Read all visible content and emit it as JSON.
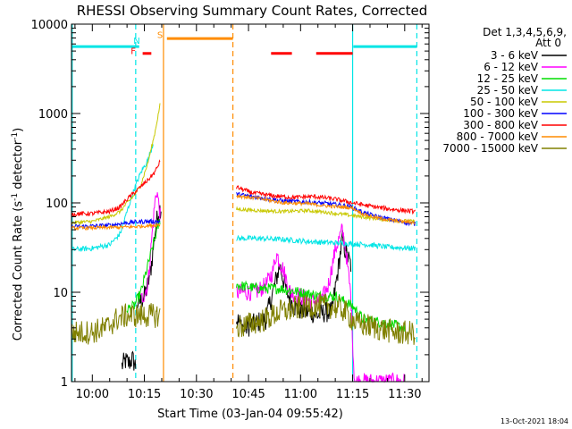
{
  "chart_data": {
    "type": "line",
    "title": "RHESSI Observing Summary Count Rates, Corrected",
    "xlabel": "Start Time (03-Jan-04 09:55:42)",
    "ylabel_main": "Corrected Count Rate (s",
    "ylabel_sup1": "-1",
    "ylabel_mid": " detector",
    "ylabel_sup2": "-1",
    "ylabel_end": ")",
    "y_scale": "log",
    "ylim": [
      1,
      10000
    ],
    "xlim_minutes": [
      -6,
      97
    ],
    "x_ticks": [
      {
        "m": 0,
        "label": "10:00"
      },
      {
        "m": 15,
        "label": "10:15"
      },
      {
        "m": 30,
        "label": "10:30"
      },
      {
        "m": 45,
        "label": "10:45"
      },
      {
        "m": 60,
        "label": "11:00"
      },
      {
        "m": 75,
        "label": "11:15"
      },
      {
        "m": 90,
        "label": "11:30"
      }
    ],
    "y_ticks": [
      {
        "v": 1,
        "label": "1"
      },
      {
        "v": 10,
        "label": "10"
      },
      {
        "v": 100,
        "label": "100"
      },
      {
        "v": 1000,
        "label": "1000"
      },
      {
        "v": 10000,
        "label": "10000"
      }
    ],
    "legend_header": [
      "Det 1,3,4,5,6,9,",
      "Att 0"
    ],
    "legend_placement": "right",
    "timestamp": "13-Oct-2021 18:04",
    "annotations": [
      {
        "text": "N",
        "m": 12.8,
        "v": 6000,
        "color": "#00e5e5"
      },
      {
        "text": "S",
        "m": 19.5,
        "v": 7000,
        "color": "#ff8c00"
      },
      {
        "text": "F",
        "m": 11.8,
        "v": 4600,
        "color": "#ff0000"
      }
    ],
    "state_bars": [
      {
        "color": "#00e5e5",
        "m0": -6,
        "m1": 13.5,
        "v": 5600
      },
      {
        "color": "#00e5e5",
        "m0": 75.2,
        "m1": 93.5,
        "v": 5600
      },
      {
        "color": "#ff8c00",
        "m0": 21.5,
        "m1": 40.5,
        "v": 6900
      },
      {
        "color": "#ff0000",
        "m0": 14.5,
        "m1": 17,
        "v": 4700
      },
      {
        "color": "#ff0000",
        "m0": 51.5,
        "m1": 57.5,
        "v": 4700
      },
      {
        "color": "#ff0000",
        "m0": 64.5,
        "m1": 75,
        "v": 4700
      }
    ],
    "vlines": [
      {
        "m": 12.5,
        "color": "#00e5e5",
        "dash": true
      },
      {
        "m": 20.5,
        "color": "#ff8c00",
        "dash": false
      },
      {
        "m": 40.5,
        "color": "#ff8c00",
        "dash": true
      },
      {
        "m": 75,
        "color": "#00e5e5",
        "dash": false
      },
      {
        "m": 93.5,
        "color": "#00e5e5",
        "dash": true
      },
      {
        "m": -5.8,
        "color": "#00e5e5",
        "dash": false
      }
    ],
    "series": [
      {
        "name": "3 - 6 keV",
        "color": "#000000",
        "noise": 0.12,
        "segments": [
          [
            [
              8.5,
              1.5
            ],
            [
              9.5,
              1.7
            ],
            [
              10.5,
              1.6
            ],
            [
              11.5,
              1.8
            ],
            [
              12.5,
              1.5
            ]
          ],
          [
            [
              13,
              7.5
            ],
            [
              14,
              8
            ],
            [
              15,
              9
            ],
            [
              16,
              12
            ],
            [
              17,
              20
            ],
            [
              18,
              45
            ],
            [
              19,
              80
            ],
            [
              19.8,
              90
            ]
          ],
          [
            [
              41.5,
              5
            ],
            [
              44,
              4
            ],
            [
              47,
              4.5
            ],
            [
              50,
              5
            ],
            [
              52,
              10
            ],
            [
              54,
              20
            ],
            [
              56,
              10
            ],
            [
              58,
              7
            ],
            [
              61,
              6
            ],
            [
              63,
              6
            ],
            [
              65,
              5.5
            ],
            [
              67,
              6
            ],
            [
              69,
              6
            ],
            [
              71,
              20
            ],
            [
              72,
              40
            ],
            [
              73,
              28
            ],
            [
              74.5,
              20
            ]
          ]
        ]
      },
      {
        "name": "6 - 12 keV",
        "color": "#ff00ff",
        "noise": 0.1,
        "segments": [
          [
            [
              14,
              8
            ],
            [
              16,
              12
            ],
            [
              18,
              100
            ],
            [
              18.6,
              140
            ],
            [
              19.6,
              70
            ]
          ],
          [
            [
              41.5,
              10
            ],
            [
              47,
              10
            ],
            [
              50,
              12
            ],
            [
              52,
              17
            ],
            [
              53,
              27
            ],
            [
              55,
              18
            ],
            [
              57,
              10
            ],
            [
              60,
              9
            ],
            [
              63,
              8
            ],
            [
              66,
              8
            ],
            [
              68,
              12
            ],
            [
              70,
              30
            ],
            [
              72,
              50
            ],
            [
              73,
              30
            ],
            [
              74.5,
              9
            ],
            [
              75.5,
              1
            ],
            [
              76.2,
              1
            ],
            [
              81,
              1
            ],
            [
              90,
              1
            ]
          ]
        ]
      },
      {
        "name": "12 - 25 keV",
        "color": "#00dd00",
        "noise": 0.06,
        "segments": [
          [
            [
              10,
              6.5
            ],
            [
              12,
              7
            ],
            [
              14,
              10
            ],
            [
              16,
              20
            ],
            [
              18,
              40
            ],
            [
              19.5,
              65
            ]
          ],
          [
            [
              41.5,
              12
            ],
            [
              48,
              11
            ],
            [
              54,
              11
            ],
            [
              60,
              10
            ],
            [
              66,
              9
            ],
            [
              70,
              9
            ],
            [
              75,
              7
            ],
            [
              78,
              5
            ],
            [
              85,
              4.5
            ],
            [
              90,
              4
            ]
          ]
        ]
      },
      {
        "name": "25 - 50 keV",
        "color": "#00e5e5",
        "noise": 0.03,
        "segments": [
          [
            [
              -6,
              30
            ],
            [
              0,
              31
            ],
            [
              5,
              34
            ],
            [
              8,
              45
            ],
            [
              10,
              80
            ],
            [
              12,
              140
            ],
            [
              14,
              220
            ],
            [
              16,
              300
            ],
            [
              17.5,
              460
            ]
          ],
          [
            [
              41.5,
              40
            ],
            [
              48,
              40
            ],
            [
              55,
              39
            ],
            [
              62,
              37
            ],
            [
              68,
              36
            ],
            [
              74,
              35
            ],
            [
              80,
              34
            ],
            [
              85,
              32
            ],
            [
              93,
              31
            ]
          ]
        ]
      },
      {
        "name": "50 - 100 keV",
        "color": "#c8c800",
        "noise": 0.02,
        "segments": [
          [
            [
              -6,
              60
            ],
            [
              0,
              62
            ],
            [
              5,
              70
            ],
            [
              8,
              80
            ],
            [
              10,
              100
            ],
            [
              12,
              120
            ],
            [
              14,
              160
            ],
            [
              16,
              280
            ],
            [
              18,
              600
            ],
            [
              19.5,
              1250
            ]
          ],
          [
            [
              41.5,
              85
            ],
            [
              48,
              82
            ],
            [
              55,
              80
            ],
            [
              62,
              82
            ],
            [
              68,
              78
            ],
            [
              75,
              72
            ],
            [
              80,
              68
            ],
            [
              86,
              64
            ],
            [
              93,
              62
            ]
          ]
        ]
      },
      {
        "name": "100 - 300 keV",
        "color": "#0000ff",
        "noise": 0.025,
        "segments": [
          [
            [
              -6,
              54
            ],
            [
              0,
              55
            ],
            [
              5,
              56
            ],
            [
              10,
              60
            ],
            [
              15,
              62
            ],
            [
              19.5,
              62
            ]
          ],
          [
            [
              41.5,
              125
            ],
            [
              48,
              115
            ],
            [
              55,
              105
            ],
            [
              62,
              102
            ],
            [
              68,
              98
            ],
            [
              74,
              92
            ],
            [
              78,
              78
            ],
            [
              82,
              70
            ],
            [
              86,
              65
            ],
            [
              93,
              58
            ]
          ]
        ]
      },
      {
        "name": "300 - 800 keV",
        "color": "#ff0000",
        "noise": 0.025,
        "segments": [
          [
            [
              -6,
              75
            ],
            [
              0,
              76
            ],
            [
              5,
              80
            ],
            [
              8,
              90
            ],
            [
              10,
              110
            ],
            [
              13,
              140
            ],
            [
              16,
              180
            ],
            [
              18,
              220
            ],
            [
              19.5,
              290
            ]
          ],
          [
            [
              41.5,
              150
            ],
            [
              46,
              130
            ],
            [
              52,
              120
            ],
            [
              58,
              115
            ],
            [
              64,
              118
            ],
            [
              70,
              110
            ],
            [
              75,
              100
            ],
            [
              80,
              92
            ],
            [
              86,
              85
            ],
            [
              93,
              80
            ]
          ]
        ]
      },
      {
        "name": "800 - 7000 keV",
        "color": "#ff8c00",
        "noise": 0.02,
        "segments": [
          [
            [
              -6,
              52
            ],
            [
              5,
              53
            ],
            [
              12,
              54
            ],
            [
              19.5,
              57
            ]
          ],
          [
            [
              41.5,
              120
            ],
            [
              48,
              112
            ],
            [
              55,
              100
            ],
            [
              62,
              98
            ],
            [
              68,
              92
            ],
            [
              75,
              88
            ],
            [
              78,
              75
            ],
            [
              82,
              68
            ],
            [
              86,
              64
            ],
            [
              93,
              60
            ]
          ]
        ]
      },
      {
        "name": "7000 - 15000 keV",
        "color": "#808000",
        "noise": 0.14,
        "segments": [
          [
            [
              -6,
              3.5
            ],
            [
              0,
              3.6
            ],
            [
              4,
              4
            ],
            [
              7,
              5
            ],
            [
              10,
              5.5
            ],
            [
              14,
              5.5
            ],
            [
              19.5,
              5.5
            ]
          ],
          [
            [
              41.5,
              4
            ],
            [
              46,
              4.5
            ],
            [
              50,
              5
            ],
            [
              54,
              6
            ],
            [
              58,
              6.5
            ],
            [
              63,
              7
            ],
            [
              68,
              7
            ],
            [
              72,
              6.5
            ],
            [
              76,
              4.5
            ],
            [
              82,
              4
            ],
            [
              88,
              3.5
            ],
            [
              93,
              3.5
            ]
          ]
        ]
      }
    ]
  }
}
